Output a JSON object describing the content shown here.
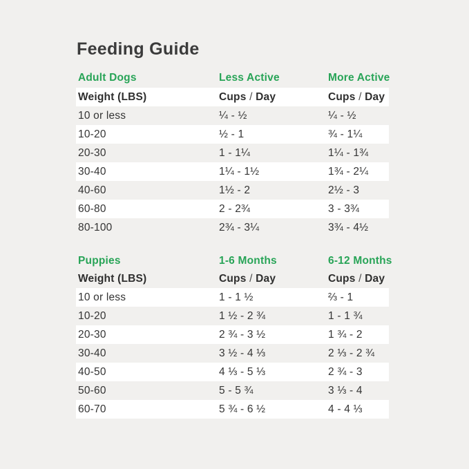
{
  "header": {
    "title": "Feeding Guide"
  },
  "labels": {
    "cups": "Cups",
    "slash": "/",
    "day": "Day"
  },
  "colors": {
    "accent_green": "#28a457",
    "background": "#f1f0ee",
    "row_stripe": "#ffffff",
    "title_text": "#3b3b3b",
    "body_text": "#343434"
  },
  "chart_data": [
    {
      "type": "table",
      "section_label": "Adult Dogs",
      "col2_header": "Less Active",
      "col3_header": "More Active",
      "row_header": "Weight (LBS)",
      "value_unit_header": "Cups / Day",
      "rows": [
        {
          "weight": "10 or less",
          "col2": "¼ - ½",
          "col3": "¼ - ½"
        },
        {
          "weight": "10-20",
          "col2": "½ - 1",
          "col3": "¾ - 1¼"
        },
        {
          "weight": "20-30",
          "col2": "1 - 1¼",
          "col3": "1¼ - 1¾"
        },
        {
          "weight": "30-40",
          "col2": "1¼ - 1½",
          "col3": "1¾ - 2¼"
        },
        {
          "weight": "40-60",
          "col2": "1½ - 2",
          "col3": "2½ - 3"
        },
        {
          "weight": "60-80",
          "col2": "2 - 2¾",
          "col3": "3 - 3¾"
        },
        {
          "weight": "80-100",
          "col2": "2¾ - 3¼",
          "col3": "3¾ - 4½"
        }
      ]
    },
    {
      "type": "table",
      "section_label": "Puppies",
      "col2_header": "1-6 Months",
      "col3_header": "6-12 Months",
      "row_header": "Weight (LBS)",
      "value_unit_header": "Cups / Day",
      "rows": [
        {
          "weight": "10 or less",
          "col2": "1 - 1 ½",
          "col3": "⅔ - 1"
        },
        {
          "weight": "10-20",
          "col2": "1 ½ - 2 ¾",
          "col3": "1 - 1 ¾"
        },
        {
          "weight": "20-30",
          "col2": "2 ¾ - 3 ½",
          "col3": "1 ¾ - 2"
        },
        {
          "weight": "30-40",
          "col2": "3 ½ - 4 ⅓",
          "col3": "2 ⅓ - 2 ¾"
        },
        {
          "weight": "40-50",
          "col2": "4 ⅓ - 5 ⅓",
          "col3": "2 ¾ - 3"
        },
        {
          "weight": "50-60",
          "col2": "5 - 5 ¾",
          "col3": "3 ⅓ - 4"
        },
        {
          "weight": "60-70",
          "col2": "5 ¾ - 6 ½",
          "col3": "4 - 4 ⅓"
        }
      ]
    }
  ]
}
